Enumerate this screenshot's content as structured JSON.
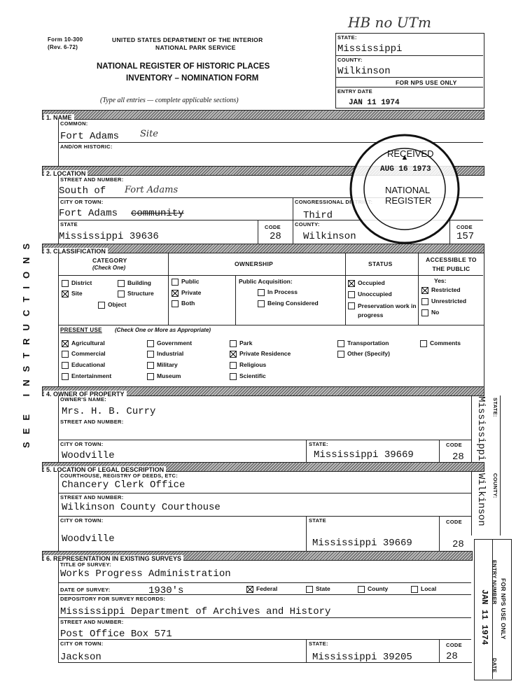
{
  "header": {
    "handwritten": "HB no UTm",
    "form_number": "Form 10-300",
    "revision": "(Rev. 6-72)",
    "department": "UNITED STATES DEPARTMENT OF THE INTERIOR",
    "service": "NATIONAL PARK SERVICE",
    "title_line1": "NATIONAL REGISTER OF HISTORIC PLACES",
    "title_line2": "INVENTORY – NOMINATION FORM",
    "instruction": "(Type all entries — complete applicable sections)"
  },
  "nps_box": {
    "state_label": "STATE:",
    "state": "Mississippi",
    "county_label": "COUNTY:",
    "county": "Wilkinson",
    "use_only": "FOR NPS USE ONLY",
    "entry_date_label": "ENTRY DATE",
    "entry_date": "JAN 11 1974"
  },
  "stamp": {
    "received": "RECEIVED",
    "date": "AUG 16 1973",
    "line1": "NATIONAL",
    "line2": "REGISTER"
  },
  "side_text": "SEE INSTRUCTIONS",
  "name": {
    "heading": "1. NAME",
    "common_label": "COMMON:",
    "common": "Fort Adams",
    "common_handwritten": "Site",
    "historic_label": "AND/OR HISTORIC:"
  },
  "location": {
    "heading": "2. LOCATION",
    "street_label": "STREET AND NUMBER:",
    "street": "South of",
    "street_handwritten": "Fort Adams",
    "city_label": "CITY OR TOWN:",
    "city": "Fort Adams",
    "city_struck": "community",
    "district_label": "CONGRESSIONAL DISTRICT:",
    "district": "Third",
    "state_label": "STATE",
    "state": "Mississippi 39636",
    "code_label": "CODE",
    "state_code": "28",
    "county_label": "COUNTY:",
    "county": "Wilkinson",
    "county_code_label": "CODE",
    "county_code": "157"
  },
  "classification": {
    "heading": "3. CLASSIFICATION",
    "category_header": "CATEGORY",
    "category_note": "(Check One)",
    "ownership_header": "OWNERSHIP",
    "status_header": "STATUS",
    "accessible_header": "ACCESSIBLE TO THE PUBLIC",
    "category": [
      {
        "label": "District",
        "checked": false
      },
      {
        "label": "Building",
        "checked": false
      },
      {
        "label": "Site",
        "checked": true
      },
      {
        "label": "Structure",
        "checked": false
      },
      {
        "label": "Object",
        "checked": false
      }
    ],
    "ownership": [
      {
        "label": "Public",
        "checked": false
      },
      {
        "label": "Private",
        "checked": true
      },
      {
        "label": "Both",
        "checked": false
      }
    ],
    "acquisition_label": "Public Acquisition:",
    "acquisition": [
      {
        "label": "In Process",
        "checked": false
      },
      {
        "label": "Being Considered",
        "checked": false
      }
    ],
    "status": [
      {
        "label": "Occupied",
        "checked": true
      },
      {
        "label": "Unoccupied",
        "checked": false
      },
      {
        "label": "Preservation work in progress",
        "checked": false
      }
    ],
    "accessible_label": "Yes:",
    "accessible": [
      {
        "label": "Restricted",
        "checked": true
      },
      {
        "label": "Unrestricted",
        "checked": false
      },
      {
        "label": "No",
        "checked": false
      }
    ],
    "present_use_label": "PRESENT USE",
    "present_use_note": "(Check One or More as Appropriate)",
    "present_use": [
      {
        "label": "Agricultural",
        "checked": true
      },
      {
        "label": "Commercial",
        "checked": false
      },
      {
        "label": "Educational",
        "checked": false
      },
      {
        "label": "Entertainment",
        "checked": false
      },
      {
        "label": "Government",
        "checked": false
      },
      {
        "label": "Industrial",
        "checked": false
      },
      {
        "label": "Military",
        "checked": false
      },
      {
        "label": "Museum",
        "checked": false
      },
      {
        "label": "Park",
        "checked": false
      },
      {
        "label": "Private Residence",
        "checked": true
      },
      {
        "label": "Religious",
        "checked": false
      },
      {
        "label": "Scientific",
        "checked": false
      },
      {
        "label": "Transportation",
        "checked": false
      },
      {
        "label": "Other (Specify)",
        "checked": false
      },
      {
        "label": "Comments",
        "checked": false
      }
    ]
  },
  "owner": {
    "heading": "4. OWNER OF PROPERTY",
    "name_label": "OWNER'S NAME:",
    "name": "Mrs. H. B. Curry",
    "street_label": "STREET AND NUMBER:",
    "city_label": "CITY OR TOWN:",
    "city": "Woodville",
    "state_label": "STATE:",
    "state": "Mississippi 39669",
    "code_label": "CODE",
    "code": "28",
    "side_state_label": "STATE:",
    "side_state": "Mississippi",
    "side_county_label": "COUNTY:",
    "side_county": "Wilkinson"
  },
  "legal": {
    "heading": "5. LOCATION OF LEGAL DESCRIPTION",
    "courthouse_label": "COURTHOUSE, REGISTRY OF DEEDS, ETC:",
    "courthouse": "Chancery Clerk Office",
    "street_label": "STREET AND NUMBER:",
    "street": "Wilkinson County Courthouse",
    "city_label": "CITY OR TOWN:",
    "city": "Woodville",
    "state_label": "STATE",
    "state": "Mississippi 39669",
    "code_label": "CODE",
    "code": "28"
  },
  "surveys": {
    "heading": "6. REPRESENTATION IN EXISTING SURVEYS",
    "title_label": "TITLE OF SURVEY:",
    "title": "Works Progress Administration",
    "date_label": "DATE OF SURVEY:",
    "date": "1930's",
    "levels": [
      {
        "label": "Federal",
        "checked": true
      },
      {
        "label": "State",
        "checked": false
      },
      {
        "label": "County",
        "checked": false
      },
      {
        "label": "Local",
        "checked": false
      }
    ],
    "depository_label": "DEPOSITORY FOR SURVEY RECORDS:",
    "depository": "Mississippi Department of Archives and History",
    "street_label": "STREET AND NUMBER:",
    "street": "Post Office Box 571",
    "city_label": "CITY OR TOWN:",
    "city": "Jackson",
    "state_label": "STATE:",
    "state": "Mississippi 39205",
    "code_label": "CODE",
    "code": "28"
  },
  "side_nps": {
    "use_only": "FOR NPS USE ONLY",
    "entry_number": "ENTRY NUMBER",
    "date_label": "DATE",
    "date": "JAN 11 1974"
  }
}
